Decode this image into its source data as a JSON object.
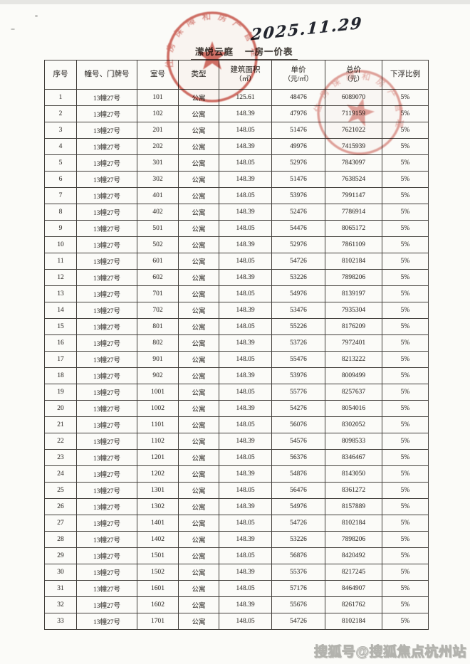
{
  "page": {
    "handwritten_date": "2025.11.29",
    "title_project": "潆悦云庭",
    "title_suffix": "一房一价表",
    "watermark": "搜狐号@搜狐焦点杭州站"
  },
  "stamps": [
    {
      "name": "official-seal-top",
      "ring_text": "住房保障和房产管理",
      "color": "#c5473c"
    },
    {
      "name": "official-seal-right",
      "ring_text": "住房保障和房产管理",
      "color": "#c5473c"
    }
  ],
  "table": {
    "columns": [
      {
        "key": "no",
        "label": "序号",
        "sub": ""
      },
      {
        "key": "building",
        "label": "幢号、门牌号",
        "sub": ""
      },
      {
        "key": "room",
        "label": "室号",
        "sub": ""
      },
      {
        "key": "type",
        "label": "类型",
        "sub": ""
      },
      {
        "key": "area",
        "label": "建筑面积",
        "sub": "（㎡）"
      },
      {
        "key": "unit_price",
        "label": "单价",
        "sub": "（元/㎡）"
      },
      {
        "key": "total_price",
        "label": "总价",
        "sub": "（元）"
      },
      {
        "key": "discount",
        "label": "下浮比例",
        "sub": ""
      }
    ],
    "rows": [
      [
        "1",
        "13幢27号",
        "101",
        "公寓",
        "125.61",
        "48476",
        "6089070",
        "5%"
      ],
      [
        "2",
        "13幢27号",
        "102",
        "公寓",
        "148.39",
        "47976",
        "7119159",
        "5%"
      ],
      [
        "3",
        "13幢27号",
        "201",
        "公寓",
        "148.05",
        "51476",
        "7621022",
        "5%"
      ],
      [
        "4",
        "13幢27号",
        "202",
        "公寓",
        "148.39",
        "49976",
        "7415939",
        "5%"
      ],
      [
        "5",
        "13幢27号",
        "301",
        "公寓",
        "148.05",
        "52976",
        "7843097",
        "5%"
      ],
      [
        "6",
        "13幢27号",
        "302",
        "公寓",
        "148.39",
        "51476",
        "7638524",
        "5%"
      ],
      [
        "7",
        "13幢27号",
        "401",
        "公寓",
        "148.05",
        "53976",
        "7991147",
        "5%"
      ],
      [
        "8",
        "13幢27号",
        "402",
        "公寓",
        "148.39",
        "52476",
        "7786914",
        "5%"
      ],
      [
        "9",
        "13幢27号",
        "501",
        "公寓",
        "148.05",
        "54476",
        "8065172",
        "5%"
      ],
      [
        "10",
        "13幢27号",
        "502",
        "公寓",
        "148.39",
        "52976",
        "7861109",
        "5%"
      ],
      [
        "11",
        "13幢27号",
        "601",
        "公寓",
        "148.05",
        "54726",
        "8102184",
        "5%"
      ],
      [
        "12",
        "13幢27号",
        "602",
        "公寓",
        "148.39",
        "53226",
        "7898206",
        "5%"
      ],
      [
        "13",
        "13幢27号",
        "701",
        "公寓",
        "148.05",
        "54976",
        "8139197",
        "5%"
      ],
      [
        "14",
        "13幢27号",
        "702",
        "公寓",
        "148.39",
        "53476",
        "7935304",
        "5%"
      ],
      [
        "15",
        "13幢27号",
        "801",
        "公寓",
        "148.05",
        "55226",
        "8176209",
        "5%"
      ],
      [
        "16",
        "13幢27号",
        "802",
        "公寓",
        "148.39",
        "53726",
        "7972401",
        "5%"
      ],
      [
        "17",
        "13幢27号",
        "901",
        "公寓",
        "148.05",
        "55476",
        "8213222",
        "5%"
      ],
      [
        "18",
        "13幢27号",
        "902",
        "公寓",
        "148.39",
        "53976",
        "8009499",
        "5%"
      ],
      [
        "19",
        "13幢27号",
        "1001",
        "公寓",
        "148.05",
        "55776",
        "8257637",
        "5%"
      ],
      [
        "20",
        "13幢27号",
        "1002",
        "公寓",
        "148.39",
        "54276",
        "8054016",
        "5%"
      ],
      [
        "21",
        "13幢27号",
        "1101",
        "公寓",
        "148.05",
        "56076",
        "8302052",
        "5%"
      ],
      [
        "22",
        "13幢27号",
        "1102",
        "公寓",
        "148.39",
        "54576",
        "8098533",
        "5%"
      ],
      [
        "23",
        "13幢27号",
        "1201",
        "公寓",
        "148.05",
        "56376",
        "8346467",
        "5%"
      ],
      [
        "24",
        "13幢27号",
        "1202",
        "公寓",
        "148.39",
        "54876",
        "8143050",
        "5%"
      ],
      [
        "25",
        "13幢27号",
        "1301",
        "公寓",
        "148.05",
        "56476",
        "8361272",
        "5%"
      ],
      [
        "26",
        "13幢27号",
        "1302",
        "公寓",
        "148.39",
        "54976",
        "8157889",
        "5%"
      ],
      [
        "27",
        "13幢27号",
        "1401",
        "公寓",
        "148.05",
        "54726",
        "8102184",
        "5%"
      ],
      [
        "28",
        "13幢27号",
        "1402",
        "公寓",
        "148.39",
        "53226",
        "7898206",
        "5%"
      ],
      [
        "29",
        "13幢27号",
        "1501",
        "公寓",
        "148.05",
        "56876",
        "8420492",
        "5%"
      ],
      [
        "30",
        "13幢27号",
        "1502",
        "公寓",
        "148.39",
        "55376",
        "8217245",
        "5%"
      ],
      [
        "31",
        "13幢27号",
        "1601",
        "公寓",
        "148.05",
        "57176",
        "8464907",
        "5%"
      ],
      [
        "32",
        "13幢27号",
        "1602",
        "公寓",
        "148.39",
        "55676",
        "8261762",
        "5%"
      ],
      [
        "33",
        "13幢27号",
        "1701",
        "公寓",
        "148.05",
        "54726",
        "8102184",
        "5%"
      ]
    ]
  }
}
